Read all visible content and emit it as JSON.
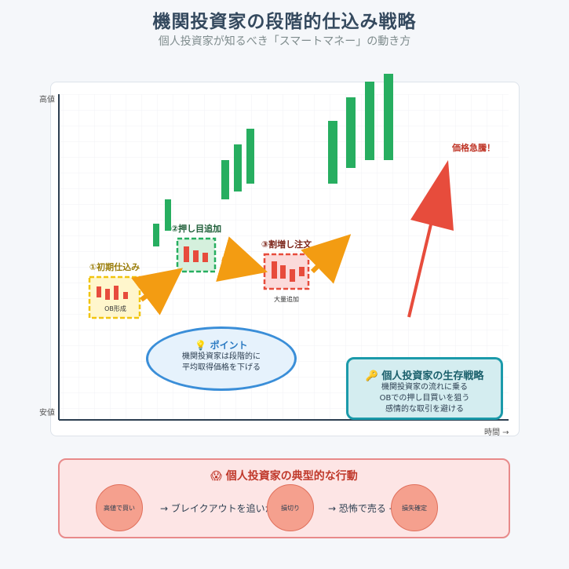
{
  "header": {
    "title": "機関投資家の段階的仕込み戦略",
    "subtitle": "個人投資家が知るべき「スマートマネー」の動き方"
  },
  "chart": {
    "y_high_label": "高値",
    "y_low_label": "安値",
    "x_label": "時間 →",
    "stages": [
      {
        "label": "①初期仕込み",
        "sublabel": "OB形成",
        "color": "#f1c40f"
      },
      {
        "label": "②押し目追加",
        "sublabel": "",
        "color": "#27ae60"
      },
      {
        "label": "③割増し注文",
        "sublabel": "大量追加",
        "color": "#e74c3c"
      }
    ],
    "surge_label": "価格急騰！",
    "colors": {
      "bull": "#27ae60",
      "bear": "#e74c3c",
      "arrow": "#f39c12",
      "surge": "#e74c3c"
    }
  },
  "point_note": {
    "icon": "lightbulb-icon",
    "title": "ポイント",
    "lines": [
      "機関投資家は段階的に",
      "平均取得価格を下げる"
    ]
  },
  "survival": {
    "icon": "key-icon",
    "title": "個人投資家の生存戦略",
    "lines": [
      "機関投資家の流れに乗る",
      "OBでの押し目買いを狙う",
      "感情的な取引を避ける"
    ]
  },
  "behavior": {
    "icon": "scared-face-icon",
    "title": "個人投資家の典型的な行動",
    "steps": [
      "高値で買い",
      "損切り",
      "損失確定"
    ],
    "transitions": [
      "→ ブレイクアウトを追いかけ",
      "→ 恐怖で売る →"
    ]
  }
}
